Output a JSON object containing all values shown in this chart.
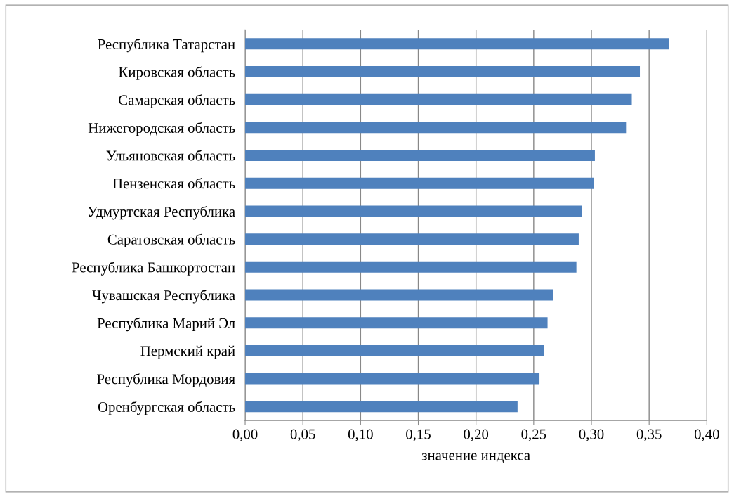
{
  "chart_data": {
    "type": "bar",
    "orientation": "horizontal",
    "xlabel": "значение индекса",
    "categories": [
      "Республика Татарстан",
      "Кировская область",
      "Самарская область",
      "Нижегородская область",
      "Ульяновская область",
      "Пензенская область",
      "Удмуртская Республика",
      "Саратовская область",
      "Республика Башкортостан",
      "Чувашская Республика",
      "Республика Марий Эл",
      "Пермский край",
      "Республика Мордовия",
      "Оренбургская область"
    ],
    "values": [
      0.367,
      0.342,
      0.335,
      0.33,
      0.303,
      0.302,
      0.292,
      0.289,
      0.287,
      0.267,
      0.262,
      0.259,
      0.255,
      0.236
    ],
    "color": "#4f81bd",
    "xlim": [
      0,
      0.4
    ],
    "xticks": [
      {
        "value": 0,
        "label": "0,00"
      },
      {
        "value": 0.05,
        "label": "0,05"
      },
      {
        "value": 0.1,
        "label": "0,10"
      },
      {
        "value": 0.15,
        "label": "0,15"
      },
      {
        "value": 0.2,
        "label": "0,20"
      },
      {
        "value": 0.25,
        "label": "0,25"
      },
      {
        "value": 0.3,
        "label": "0,30"
      },
      {
        "value": 0.35,
        "label": "0,35"
      },
      {
        "value": 0.4,
        "label": "0,40"
      }
    ],
    "grid": "x",
    "legend": false
  }
}
